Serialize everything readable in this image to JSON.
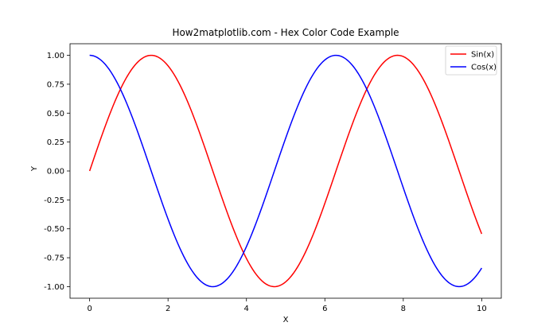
{
  "chart_data": {
    "type": "line",
    "title": "How2matplotlib.com - Hex Color Code Example",
    "xlabel": "X",
    "ylabel": "Y",
    "xlim": [
      -0.5,
      10.5
    ],
    "ylim": [
      -1.1,
      1.1
    ],
    "x_ticks": [
      0,
      2,
      4,
      6,
      8,
      10
    ],
    "x_tick_labels": [
      "0",
      "2",
      "4",
      "6",
      "8",
      "10"
    ],
    "y_ticks": [
      -1.0,
      -0.75,
      -0.5,
      -0.25,
      0.0,
      0.25,
      0.5,
      0.75,
      1.0
    ],
    "y_tick_labels": [
      "-1.00",
      "-0.75",
      "-0.50",
      "-0.25",
      "0.00",
      "0.25",
      "0.50",
      "0.75",
      "1.00"
    ],
    "grid": false,
    "legend": "top-right",
    "x_range": [
      0,
      10
    ],
    "series": [
      {
        "name": "Sin(x)",
        "function": "sin",
        "color": "#FF0000"
      },
      {
        "name": "Cos(x)",
        "function": "cos",
        "color": "#0000FF"
      }
    ]
  }
}
